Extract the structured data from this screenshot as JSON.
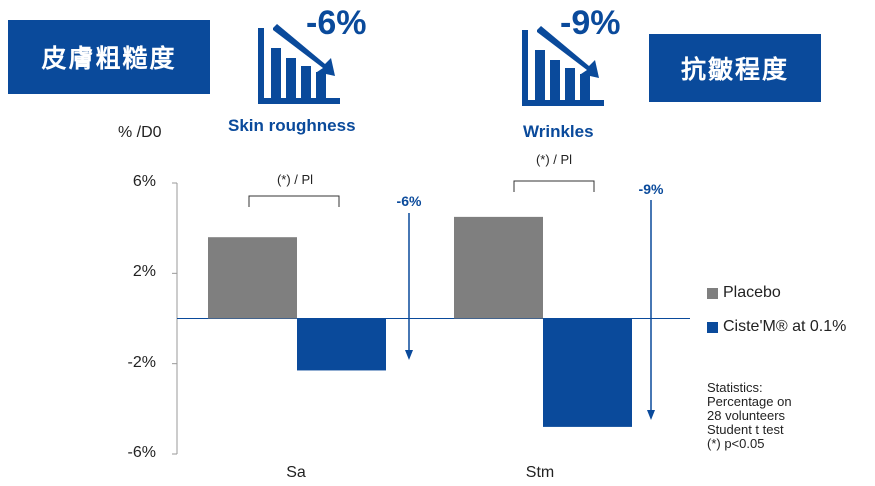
{
  "badges": {
    "left": "皮膚粗糙度",
    "right": "抗皺程度"
  },
  "icons": {
    "roughness": {
      "pct": "-6%",
      "caption": "Skin roughness"
    },
    "wrinkles": {
      "pct": "-9%",
      "caption": "Wrinkles"
    }
  },
  "y_axis_unit": "% /D0",
  "significance": {
    "sa": "(*) / Pl",
    "stm": "(*) / Pl"
  },
  "arrows": {
    "sa": "-6%",
    "stm": "-9%"
  },
  "legend": {
    "placebo": "Placebo",
    "ciste": "Ciste'M® at 0.1%"
  },
  "statistics": {
    "line1": "Statistics:",
    "line2": "Percentage on",
    "line3": "28 volunteers",
    "line4": "Student t test",
    "line5": "(*) p<0.05"
  },
  "colors": {
    "placebo": "#7f7f7f",
    "ciste": "#0a4a9b",
    "accent": "#0a4a9b"
  },
  "chart_data": {
    "type": "bar",
    "categories": [
      "Sa",
      "Stm"
    ],
    "series": [
      {
        "name": "Placebo",
        "values": [
          3.6,
          4.5
        ]
      },
      {
        "name": "Ciste'M® at 0.1%",
        "values": [
          -2.3,
          -4.8
        ]
      }
    ],
    "ylabel": "% /D0",
    "ylim": [
      -6,
      6
    ],
    "yticks": [
      "6%",
      "2%",
      "-2%",
      "-6%"
    ],
    "ytick_values": [
      6,
      2,
      -2,
      -6
    ],
    "legend_position": "right",
    "grid": false
  }
}
